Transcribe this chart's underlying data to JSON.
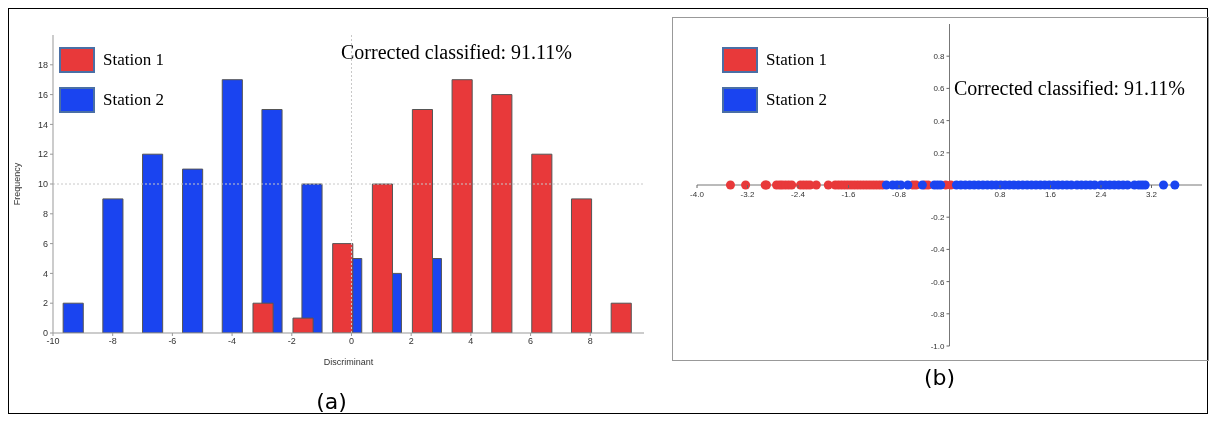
{
  "chart_data": [
    {
      "type": "bar",
      "title": "(a)",
      "xlabel": "Discriminant",
      "ylabel": "Frequency",
      "xlim": [
        -10,
        9.8
      ],
      "xticks": [
        -10,
        -8,
        -6,
        -4,
        -2,
        0,
        2,
        4,
        6,
        8
      ],
      "ylim": [
        0,
        20
      ],
      "yticks": [
        0,
        2,
        4,
        6,
        8,
        10,
        12,
        14,
        16,
        18
      ],
      "legend": "top left",
      "annotations": [
        "Corrected classified: 91.11%"
      ],
      "ref_lines": [
        {
          "axis": "y",
          "value": 10,
          "line_style": "dotted",
          "color": "#c8c8c8"
        },
        {
          "axis": "x",
          "value": 0,
          "line_style": "dotted",
          "color": "#c8c8c8"
        }
      ],
      "series": [
        {
          "name": "Station 1",
          "color": "#e8393a",
          "x": [
            -2.97,
            -1.63,
            -0.3,
            1.03,
            2.37,
            3.7,
            5.03,
            6.37,
            7.7,
            9.03
          ],
          "values": [
            2,
            1,
            6,
            10,
            15,
            17,
            16,
            12,
            9,
            2
          ]
        },
        {
          "name": "Station 2",
          "color": "#1a44f0",
          "x": [
            -9.33,
            -8,
            -6.67,
            -5.33,
            -4,
            -2.67,
            -1.33,
            0,
            1.33,
            2.67
          ],
          "values": [
            2,
            9,
            12,
            11,
            17,
            15,
            10,
            5,
            4,
            5
          ]
        }
      ]
    },
    {
      "type": "scatter",
      "title": "(b)",
      "xlim": [
        -4,
        4
      ],
      "xticks": [
        {
          "value": -4,
          "label": "-4.0"
        },
        -3.2,
        -2.4,
        -1.6,
        -0.8,
        0.8,
        1.6,
        2.4,
        3.2
      ],
      "ylim": [
        -1,
        1
      ],
      "yticks": [
        {
          "value": -1,
          "label": "-1.0"
        },
        -0.8,
        -0.6,
        -0.4,
        -0.2,
        0.2,
        0.4,
        0.6,
        0.8
      ],
      "legend": "top left",
      "marker": "circle",
      "annotations": [
        "Corrected classified: 91.11%"
      ],
      "series": [
        {
          "name": "Station 1",
          "color": "#e8393a",
          "x": [
            -3.47,
            -3.23,
            -2.92,
            -2.9,
            -2.74,
            -2.69,
            -2.65,
            -2.6,
            -2.55,
            -2.5,
            -2.36,
            -2.31,
            -2.26,
            -2.21,
            -2.11,
            -1.92,
            -1.81,
            -1.76,
            -1.71,
            -1.66,
            -1.61,
            -1.56,
            -1.51,
            -1.46,
            -1.41,
            -1.36,
            -1.31,
            -1.26,
            -1.21,
            -1.16,
            -1.11,
            -1.06,
            -0.58,
            -0.53,
            -0.39,
            -0.34,
            -0.06,
            0.02
          ],
          "values": [
            0,
            0,
            0,
            0,
            0,
            0,
            0,
            0,
            0,
            0,
            0,
            0,
            0,
            0,
            0,
            0,
            0,
            0,
            0,
            0,
            0,
            0,
            0,
            0,
            0,
            0,
            0,
            0,
            0,
            0,
            0,
            0,
            0,
            0,
            0,
            0,
            0,
            0
          ]
        },
        {
          "name": "Station 2",
          "color": "#1a44f0",
          "x": [
            -1,
            -0.9,
            -0.83,
            -0.77,
            -0.66,
            -0.43,
            -0.24,
            -0.19,
            -0.14,
            0.11,
            0.18,
            0.25,
            0.32,
            0.39,
            0.46,
            0.53,
            0.6,
            0.67,
            0.74,
            0.81,
            0.88,
            0.95,
            1.02,
            1.09,
            1.16,
            1.23,
            1.3,
            1.37,
            1.44,
            1.51,
            1.58,
            1.65,
            1.72,
            1.79,
            1.86,
            1.93,
            2.02,
            2.09,
            2.16,
            2.23,
            2.3,
            2.4,
            2.47,
            2.54,
            2.61,
            2.68,
            2.75,
            2.82,
            2.93,
            3,
            3.05,
            3.1,
            3.39,
            3.57
          ],
          "values": [
            0,
            0,
            0,
            0,
            0,
            0,
            0,
            0,
            0,
            0,
            0,
            0,
            0,
            0,
            0,
            0,
            0,
            0,
            0,
            0,
            0,
            0,
            0,
            0,
            0,
            0,
            0,
            0,
            0,
            0,
            0,
            0,
            0,
            0,
            0,
            0,
            0,
            0,
            0,
            0,
            0,
            0,
            0,
            0,
            0,
            0,
            0,
            0,
            0,
            0,
            0,
            0,
            0,
            0
          ]
        }
      ]
    }
  ]
}
